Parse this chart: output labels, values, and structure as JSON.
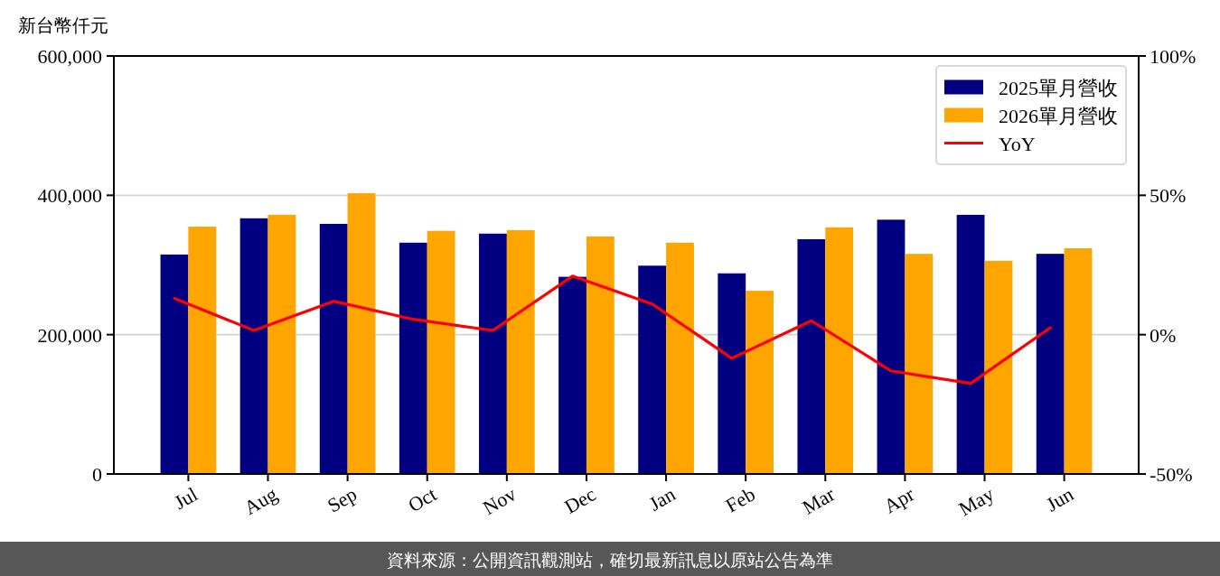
{
  "chart_data": {
    "type": "bar",
    "ylabel": "新台幣仟元",
    "categories": [
      "Jul",
      "Aug",
      "Sep",
      "Oct",
      "Nov",
      "Dec",
      "Jan",
      "Feb",
      "Mar",
      "Apr",
      "May",
      "Jun"
    ],
    "series": [
      {
        "name": "2025單月營收",
        "color": "#000080",
        "values": [
          315000,
          367000,
          359000,
          332000,
          345000,
          283000,
          299000,
          288000,
          337000,
          365000,
          372000,
          316000
        ]
      },
      {
        "name": "2026單月營收",
        "color": "#ffa500",
        "values": [
          355000,
          372000,
          403000,
          349000,
          350000,
          341000,
          332000,
          263000,
          354000,
          316000,
          306000,
          324000
        ]
      },
      {
        "name": "YoY",
        "type": "line",
        "axis": "y2",
        "color": "#ff0000",
        "values": [
          13,
          1.5,
          12,
          5.5,
          1.5,
          21,
          11,
          -8.5,
          5,
          -13,
          -17.5,
          2.5
        ]
      }
    ],
    "ylim": [
      0,
      600000
    ],
    "yticks": [
      0,
      {
        "value": 200000,
        "label": "200,000"
      },
      {
        "value": 400000,
        "label": "400,000"
      },
      {
        "value": 600000,
        "label": "600,000"
      }
    ],
    "y2lim": [
      -50,
      100
    ],
    "y2ticks": [
      {
        "value": -50,
        "label": "-50%"
      },
      {
        "value": 0,
        "label": "0%"
      },
      {
        "value": 50,
        "label": "50%"
      },
      {
        "value": 100,
        "label": "100%"
      }
    ],
    "grid": "y",
    "legend": "top right",
    "annotations": [
      "資料來源：公開資訊觀測站，確切最新訊息以原站公告為準"
    ]
  }
}
